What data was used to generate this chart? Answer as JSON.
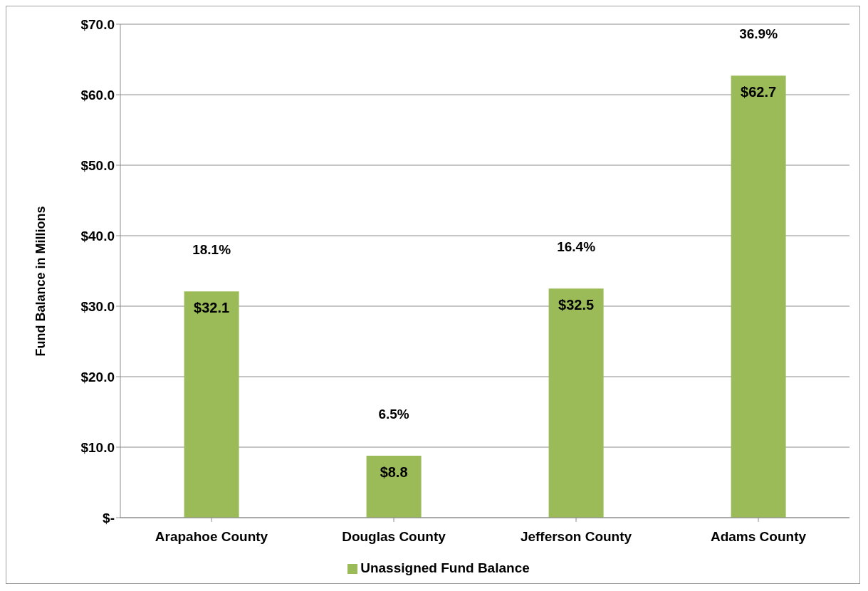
{
  "chart_data": {
    "type": "bar",
    "ylabel": "Fund Balance in Millions",
    "categories": [
      "Arapahoe County",
      "Douglas County",
      "Jefferson County",
      "Adams County"
    ],
    "series": [
      {
        "name": "Unassigned Fund Balance",
        "color": "#9bbb59",
        "values": [
          32.1,
          8.8,
          32.5,
          62.7
        ],
        "value_labels": [
          "$32.1",
          "$8.8",
          "$32.5",
          "$62.7"
        ]
      }
    ],
    "ylim": [
      0,
      70
    ],
    "yticks": [
      {
        "value": 0,
        "label": "$-"
      },
      {
        "value": 10,
        "label": "$10.0"
      },
      {
        "value": 20,
        "label": "$20.0"
      },
      {
        "value": 30,
        "label": "$30.0"
      },
      {
        "value": 40,
        "label": "$40.0"
      },
      {
        "value": 50,
        "label": "$50.0"
      },
      {
        "value": 60,
        "label": "$60.0"
      },
      {
        "value": 70,
        "label": "$70.0"
      }
    ],
    "grid": "y",
    "legend": "bottom",
    "annotations": [
      "18.1%",
      "6.5%",
      "16.4%",
      "36.9%"
    ]
  }
}
